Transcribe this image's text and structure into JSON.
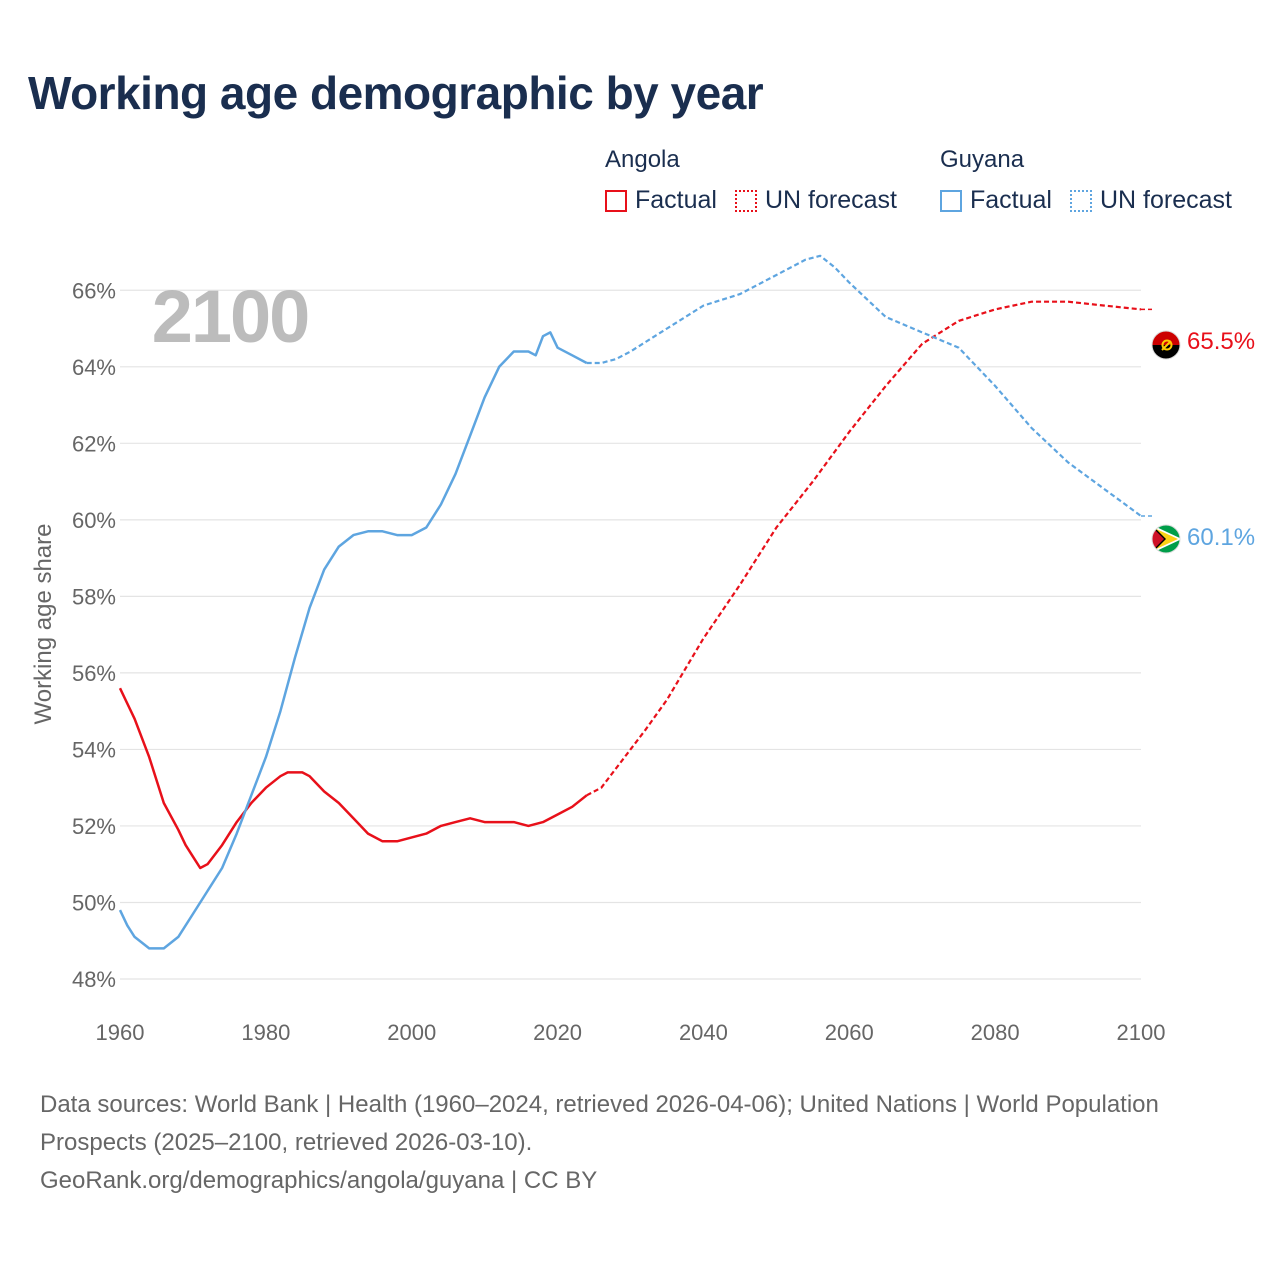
{
  "title": "Working age demographic by year",
  "year_label": "2100",
  "legend": [
    {
      "country": "Angola",
      "factual_label": "Factual",
      "forecast_label": "UN forecast",
      "color": "#e8101a"
    },
    {
      "country": "Guyana",
      "factual_label": "Factual",
      "forecast_label": "UN forecast",
      "color": "#5ea5e0"
    }
  ],
  "chart_data": {
    "type": "line",
    "title": "Working age demographic by year",
    "xlabel": "",
    "ylabel": "Working age share",
    "xlim": [
      1960,
      2100
    ],
    "ylim": [
      48,
      67
    ],
    "x_ticks": [
      1960,
      1980,
      2000,
      2020,
      2040,
      2060,
      2080,
      2100
    ],
    "y_ticks": [
      48,
      50,
      52,
      54,
      56,
      58,
      60,
      62,
      64,
      66
    ],
    "y_tick_suffix": "%",
    "grid": true,
    "factual_range": [
      1960,
      2024
    ],
    "forecast_range": [
      2025,
      2100
    ],
    "series": [
      {
        "name": "Angola",
        "color": "#e8101a",
        "end_label": "65.5%",
        "flag": "angola",
        "points": [
          [
            1960,
            55.6
          ],
          [
            1962,
            54.8
          ],
          [
            1964,
            53.8
          ],
          [
            1966,
            52.6
          ],
          [
            1968,
            51.9
          ],
          [
            1969,
            51.5
          ],
          [
            1970,
            51.2
          ],
          [
            1971,
            50.9
          ],
          [
            1972,
            51.0
          ],
          [
            1974,
            51.5
          ],
          [
            1976,
            52.1
          ],
          [
            1978,
            52.6
          ],
          [
            1980,
            53.0
          ],
          [
            1982,
            53.3
          ],
          [
            1983,
            53.4
          ],
          [
            1985,
            53.4
          ],
          [
            1986,
            53.3
          ],
          [
            1988,
            52.9
          ],
          [
            1990,
            52.6
          ],
          [
            1992,
            52.2
          ],
          [
            1994,
            51.8
          ],
          [
            1996,
            51.6
          ],
          [
            1998,
            51.6
          ],
          [
            2000,
            51.7
          ],
          [
            2002,
            51.8
          ],
          [
            2004,
            52.0
          ],
          [
            2006,
            52.1
          ],
          [
            2008,
            52.2
          ],
          [
            2010,
            52.1
          ],
          [
            2012,
            52.1
          ],
          [
            2014,
            52.1
          ],
          [
            2016,
            52.0
          ],
          [
            2018,
            52.1
          ],
          [
            2020,
            52.3
          ],
          [
            2022,
            52.5
          ],
          [
            2024,
            52.8
          ],
          [
            2026,
            53.0
          ],
          [
            2028,
            53.5
          ],
          [
            2030,
            54.0
          ],
          [
            2032,
            54.5
          ],
          [
            2035,
            55.3
          ],
          [
            2040,
            56.9
          ],
          [
            2045,
            58.3
          ],
          [
            2050,
            59.8
          ],
          [
            2055,
            61.0
          ],
          [
            2060,
            62.3
          ],
          [
            2065,
            63.5
          ],
          [
            2070,
            64.6
          ],
          [
            2075,
            65.2
          ],
          [
            2080,
            65.5
          ],
          [
            2085,
            65.7
          ],
          [
            2090,
            65.7
          ],
          [
            2095,
            65.6
          ],
          [
            2100,
            65.5
          ]
        ]
      },
      {
        "name": "Guyana",
        "color": "#5ea5e0",
        "end_label": "60.1%",
        "flag": "guyana",
        "points": [
          [
            1960,
            49.8
          ],
          [
            1961,
            49.4
          ],
          [
            1962,
            49.1
          ],
          [
            1964,
            48.8
          ],
          [
            1966,
            48.8
          ],
          [
            1968,
            49.1
          ],
          [
            1970,
            49.7
          ],
          [
            1972,
            50.3
          ],
          [
            1974,
            50.9
          ],
          [
            1976,
            51.8
          ],
          [
            1978,
            52.8
          ],
          [
            1980,
            53.8
          ],
          [
            1982,
            55.0
          ],
          [
            1984,
            56.4
          ],
          [
            1986,
            57.7
          ],
          [
            1988,
            58.7
          ],
          [
            1990,
            59.3
          ],
          [
            1992,
            59.6
          ],
          [
            1994,
            59.7
          ],
          [
            1996,
            59.7
          ],
          [
            1998,
            59.6
          ],
          [
            2000,
            59.6
          ],
          [
            2002,
            59.8
          ],
          [
            2004,
            60.4
          ],
          [
            2006,
            61.2
          ],
          [
            2008,
            62.2
          ],
          [
            2010,
            63.2
          ],
          [
            2012,
            64.0
          ],
          [
            2014,
            64.4
          ],
          [
            2016,
            64.4
          ],
          [
            2017,
            64.3
          ],
          [
            2018,
            64.8
          ],
          [
            2019,
            64.9
          ],
          [
            2020,
            64.5
          ],
          [
            2022,
            64.3
          ],
          [
            2024,
            64.1
          ],
          [
            2026,
            64.1
          ],
          [
            2028,
            64.2
          ],
          [
            2030,
            64.4
          ],
          [
            2035,
            65.0
          ],
          [
            2040,
            65.6
          ],
          [
            2045,
            65.9
          ],
          [
            2050,
            66.4
          ],
          [
            2054,
            66.8
          ],
          [
            2056,
            66.9
          ],
          [
            2058,
            66.6
          ],
          [
            2060,
            66.2
          ],
          [
            2065,
            65.3
          ],
          [
            2070,
            64.9
          ],
          [
            2075,
            64.5
          ],
          [
            2080,
            63.5
          ],
          [
            2085,
            62.4
          ],
          [
            2090,
            61.5
          ],
          [
            2095,
            60.8
          ],
          [
            2100,
            60.1
          ]
        ]
      }
    ]
  },
  "footer": {
    "sources": "Data sources: World Bank | Health (1960–2024, retrieved 2026-04-06); United Nations | World Population Prospects (2025–2100, retrieved 2026-03-10).",
    "attribution": "GeoRank.org/demographics/angola/guyana | CC BY"
  }
}
